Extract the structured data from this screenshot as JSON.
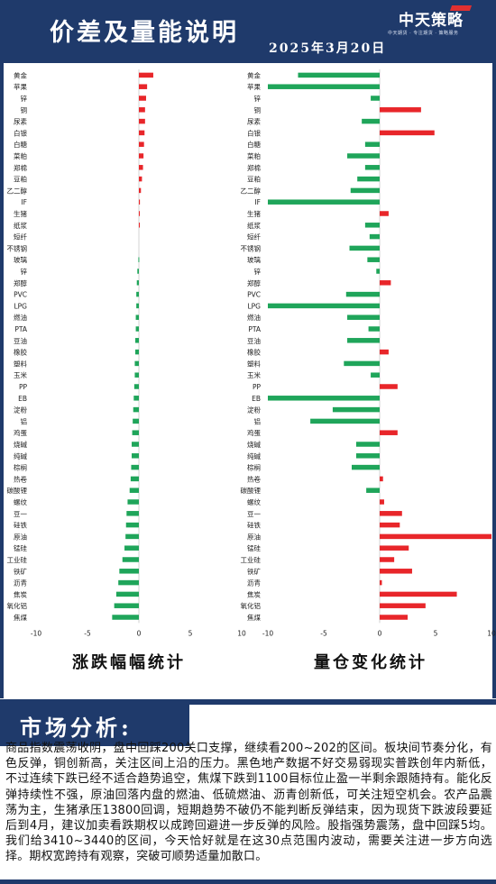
{
  "header": {
    "title": "价差及量能说明",
    "date": "2025年3月20日",
    "logo_main": "中天策略",
    "logo_sub": "中天期货 · 专注期货 · 策略服务"
  },
  "captions": {
    "left": "涨跌幅幅统计",
    "right": "量仓变化统计"
  },
  "section": {
    "label": "市场分析:",
    "text": "商品指数震荡收阴，盘中回踩200关口支撑，继续看200~202的区间。板块间节奏分化，有色反弹，铜创新高，关注区间上沿的压力。黑色地产数据不好交易弱现实普跌创年内新低，不过连续下跌已经不适合趋势追空，焦煤下跌到1100目标位止盈一半剩余跟随持有。能化反弹持续性不强，原油回落内盘的燃油、低硫燃油、沥青创新低，可关注短空机会。农产品震荡为主，生猪承压13800回调，短期趋势不破仍不能判断反弹结束，因为现货下跌波段要延后到4月，建议加卖看跌期权以成跨回避进一步反弹的风险。股指强势震荡，盘中回踩5均。我们给3410~3440的区间，今天恰好就是在这30点范围内波动，需要关注进一步方向选择。期权宽跨持有观察，突破可顺势适量加散口。"
  },
  "colors": {
    "up": "#e8262a",
    "down": "#1fa55a",
    "frame": "#1f3a6b"
  },
  "chart_data": [
    {
      "type": "bar",
      "orientation": "horizontal",
      "title": "涨跌幅幅统计",
      "xlim": [
        -10,
        10
      ],
      "xticks": [
        -10,
        -5,
        0,
        5,
        10
      ],
      "categories": [
        "黄金",
        "苹果",
        "锌",
        "铜",
        "尿素",
        "白银",
        "白糖",
        "菜粕",
        "郑棉",
        "豆粕",
        "乙二醇",
        "IF",
        "生猪",
        "纸浆",
        "短纤",
        "不锈钢",
        "玻璃",
        "锌",
        "郑醇",
        "PVC",
        "LPG",
        "燃油",
        "PTA",
        "豆油",
        "橡胶",
        "塑料",
        "玉米",
        "PP",
        "EB",
        "淀粉",
        "铝",
        "鸡蛋",
        "烧碱",
        "纯碱",
        "棕榈",
        "热卷",
        "碳酸锂",
        "螺纹",
        "豆一",
        "硅铁",
        "原油",
        "锰硅",
        "工业硅",
        "铁矿",
        "沥青",
        "焦炭",
        "氧化铝",
        "焦煤"
      ],
      "values": [
        1.4,
        0.8,
        0.7,
        0.6,
        0.6,
        0.55,
        0.5,
        0.45,
        0.4,
        0.3,
        0.2,
        0.1,
        0.05,
        0.02,
        0.0,
        0.0,
        -0.05,
        -0.15,
        -0.2,
        -0.25,
        -0.25,
        -0.3,
        -0.3,
        -0.35,
        -0.35,
        -0.4,
        -0.4,
        -0.45,
        -0.5,
        -0.55,
        -0.6,
        -0.65,
        -0.7,
        -0.7,
        -0.75,
        -0.8,
        -0.9,
        -1.1,
        -1.2,
        -1.25,
        -1.3,
        -1.4,
        -1.6,
        -1.9,
        -2.0,
        -2.2,
        -2.4,
        -2.6
      ]
    },
    {
      "type": "bar",
      "orientation": "horizontal",
      "title": "量仓变化统计",
      "xlim": [
        -10,
        10
      ],
      "xticks": [
        -10,
        -5,
        0,
        5,
        10
      ],
      "categories": [
        "黄金",
        "苹果",
        "锌",
        "铜",
        "尿素",
        "白银",
        "白糖",
        "菜粕",
        "郑棉",
        "豆粕",
        "乙二醇",
        "IF",
        "生猪",
        "纸浆",
        "短纤",
        "不锈钢",
        "玻璃",
        "锌",
        "郑醇",
        "PVC",
        "LPG",
        "燃油",
        "PTA",
        "豆油",
        "橡胶",
        "塑料",
        "玉米",
        "PP",
        "EB",
        "淀粉",
        "铝",
        "鸡蛋",
        "烧碱",
        "纯碱",
        "棕榈",
        "热卷",
        "碳酸锂",
        "螺纹",
        "豆一",
        "硅铁",
        "原油",
        "锰硅",
        "工业硅",
        "铁矿",
        "沥青",
        "焦炭",
        "氧化铝",
        "焦煤"
      ],
      "values": [
        -7.3,
        -10.0,
        -0.8,
        3.7,
        -1.6,
        4.9,
        -1.3,
        -2.9,
        -1.3,
        -2.0,
        -2.6,
        -10.0,
        0.8,
        -1.3,
        -0.9,
        -2.7,
        -1.1,
        -0.3,
        1.0,
        -3.0,
        -10.0,
        -2.9,
        -1.0,
        -2.9,
        0.8,
        -3.2,
        -0.8,
        1.6,
        -10.0,
        -4.2,
        -6.2,
        1.6,
        -2.1,
        -2.1,
        -2.5,
        0.3,
        -1.2,
        0.4,
        2.0,
        1.8,
        10.0,
        2.6,
        1.3,
        2.9,
        0.2,
        6.9,
        4.1,
        2.5
      ]
    }
  ]
}
